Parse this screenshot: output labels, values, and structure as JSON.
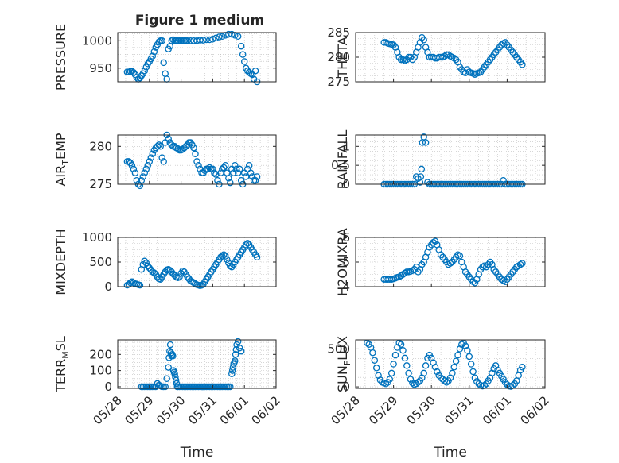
{
  "figure": {
    "title": "Figure 1 medium"
  },
  "colors": {
    "marker": "#0072bd",
    "axis": "#262626",
    "grid": "#bdbdbd",
    "background": "#ffffff"
  },
  "chart_data": [
    {
      "type": "scatter",
      "ylabel": "PRESSURE",
      "ylim": [
        925,
        1015
      ],
      "yticks": [
        950,
        1000
      ],
      "xlim": [
        0,
        5
      ],
      "xticks": [],
      "xticklabels": [],
      "xlabel": "",
      "grid": true,
      "marker": "open-circle",
      "x": [
        0.3,
        0.35,
        0.4,
        0.45,
        0.5,
        0.55,
        0.6,
        0.65,
        0.7,
        0.75,
        0.8,
        0.85,
        0.9,
        0.95,
        1.0,
        1.05,
        1.1,
        1.15,
        1.2,
        1.25,
        1.3,
        1.35,
        1.4,
        1.45,
        1.5,
        1.55,
        1.6,
        1.65,
        1.7,
        1.75,
        1.8,
        1.85,
        1.9,
        1.95,
        2.0,
        2.05,
        2.1,
        2.15,
        2.2,
        2.3,
        2.4,
        2.5,
        2.6,
        2.7,
        2.8,
        2.9,
        3.0,
        3.1,
        3.2,
        3.3,
        3.4,
        3.5,
        3.6,
        3.7,
        3.8,
        3.9,
        3.95,
        4.0,
        4.05,
        4.1,
        4.15,
        4.2,
        4.25,
        4.3,
        4.35,
        4.4
      ],
      "y": [
        943,
        943,
        944,
        944,
        942,
        938,
        933,
        930,
        932,
        936,
        940,
        945,
        952,
        958,
        962,
        967,
        972,
        980,
        988,
        993,
        998,
        1000,
        1000,
        960,
        940,
        930,
        985,
        990,
        1000,
        1002,
        1000,
        1000,
        1000,
        1000,
        1000,
        1000,
        1000,
        1000,
        1000,
        1000,
        1000,
        1000,
        1001,
        1001,
        1002,
        1002,
        1003,
        1005,
        1007,
        1008,
        1010,
        1012,
        1012,
        1010,
        1008,
        990,
        975,
        962,
        950,
        945,
        942,
        940,
        938,
        930,
        945,
        925
      ]
    },
    {
      "type": "scatter",
      "ylabel": "THETA",
      "ylim": [
        275,
        285
      ],
      "yticks": [
        275,
        280,
        285
      ],
      "xlim": [
        0,
        5
      ],
      "xticks": [],
      "xticklabels": [],
      "xlabel": "",
      "grid": true,
      "marker": "open-circle",
      "x": [
        0.75,
        0.8,
        0.85,
        0.9,
        0.95,
        1.0,
        1.05,
        1.1,
        1.15,
        1.2,
        1.25,
        1.3,
        1.35,
        1.4,
        1.45,
        1.5,
        1.55,
        1.6,
        1.65,
        1.7,
        1.75,
        1.8,
        1.85,
        1.9,
        1.95,
        2.0,
        2.05,
        2.1,
        2.15,
        2.2,
        2.25,
        2.3,
        2.35,
        2.4,
        2.45,
        2.5,
        2.55,
        2.6,
        2.65,
        2.7,
        2.75,
        2.8,
        2.85,
        2.9,
        2.95,
        3.0,
        3.05,
        3.1,
        3.15,
        3.2,
        3.25,
        3.3,
        3.35,
        3.4,
        3.45,
        3.5,
        3.55,
        3.6,
        3.65,
        3.7,
        3.75,
        3.8,
        3.85,
        3.9,
        3.95,
        4.0,
        4.05,
        4.1,
        4.15,
        4.2,
        4.25,
        4.3,
        4.35,
        4.4
      ],
      "y": [
        283,
        283,
        282.8,
        282.7,
        282.6,
        282.5,
        282,
        281,
        280,
        279.5,
        279.5,
        279.3,
        279.5,
        280,
        280,
        279.5,
        280,
        281,
        282,
        283,
        284,
        283.5,
        282,
        281,
        280,
        280,
        280,
        279.8,
        279.8,
        280,
        280,
        280,
        280.2,
        280.5,
        280.5,
        280.2,
        280,
        279.8,
        279.5,
        279,
        278,
        277.5,
        277,
        276.8,
        277.5,
        277,
        276.8,
        276.7,
        276.5,
        276.7,
        276.8,
        277,
        277.5,
        278,
        278.5,
        279,
        279.5,
        280,
        280.5,
        281,
        281.5,
        282,
        282.5,
        282.8,
        283,
        282.5,
        282,
        281.5,
        281,
        280.5,
        280,
        279.5,
        279,
        278.5
      ]
    },
    {
      "type": "scatter",
      "ylabel": "AIR_TEMP",
      "ylim": [
        275,
        281.5
      ],
      "yticks": [
        275,
        280
      ],
      "xlim": [
        0,
        5
      ],
      "xticks": [],
      "xticklabels": [],
      "xlabel": "",
      "grid": true,
      "marker": "open-circle",
      "x": [
        0.3,
        0.35,
        0.4,
        0.45,
        0.5,
        0.55,
        0.6,
        0.65,
        0.7,
        0.75,
        0.8,
        0.85,
        0.9,
        0.95,
        1.0,
        1.05,
        1.1,
        1.15,
        1.2,
        1.25,
        1.3,
        1.35,
        1.4,
        1.45,
        1.5,
        1.55,
        1.6,
        1.65,
        1.7,
        1.75,
        1.8,
        1.85,
        1.9,
        1.95,
        2.0,
        2.05,
        2.1,
        2.15,
        2.2,
        2.25,
        2.3,
        2.35,
        2.4,
        2.45,
        2.5,
        2.55,
        2.6,
        2.65,
        2.7,
        2.75,
        2.8,
        2.85,
        2.9,
        2.95,
        3.0,
        3.05,
        3.1,
        3.15,
        3.2,
        3.25,
        3.3,
        3.35,
        3.4,
        3.45,
        3.5,
        3.55,
        3.6,
        3.65,
        3.7,
        3.75,
        3.8,
        3.85,
        3.9,
        3.95,
        4.0,
        4.05,
        4.1,
        4.15,
        4.2,
        4.25,
        4.3,
        4.35,
        4.4
      ],
      "y": [
        278,
        278,
        277.8,
        277.5,
        277,
        276.5,
        275.5,
        275,
        274.8,
        275.5,
        276,
        276.5,
        277,
        277.5,
        278,
        278.5,
        279,
        279.5,
        279.8,
        280,
        280.2,
        280,
        278.5,
        278,
        280.5,
        281.5,
        281,
        280.5,
        280.2,
        280,
        280,
        279.8,
        279.7,
        279.5,
        279.5,
        279.6,
        279.8,
        280,
        280.2,
        280.5,
        280.5,
        280.2,
        279.8,
        279,
        278,
        277.5,
        277,
        276.5,
        276.5,
        276.8,
        277,
        277,
        277.2,
        277,
        277,
        276.5,
        276.3,
        275.5,
        275,
        276.5,
        277,
        277.2,
        277.5,
        276.5,
        275.8,
        275.2,
        277,
        276.5,
        277.5,
        277,
        276.5,
        277,
        275.5,
        275,
        276.5,
        276,
        277,
        277.5,
        276.5,
        276,
        275.5,
        275.5,
        276
      ]
    },
    {
      "type": "scatter",
      "ylabel": "RAINFALL",
      "ylim": [
        0,
        1.3
      ],
      "yticks": [
        0,
        0.5,
        1
      ],
      "xlim": [
        0,
        5
      ],
      "xticks": [],
      "xticklabels": [],
      "xlabel": "",
      "grid": true,
      "marker": "open-circle",
      "x": [
        0.75,
        0.8,
        0.85,
        0.9,
        0.95,
        1.0,
        1.05,
        1.1,
        1.15,
        1.2,
        1.25,
        1.3,
        1.35,
        1.4,
        1.45,
        1.5,
        1.55,
        1.6,
        1.65,
        1.7,
        1.72,
        1.74,
        1.76,
        1.8,
        1.85,
        1.9,
        1.95,
        2.0,
        2.05,
        2.1,
        2.15,
        2.2,
        2.25,
        2.3,
        2.35,
        2.4,
        2.45,
        2.5,
        2.55,
        2.6,
        2.65,
        2.7,
        2.75,
        2.8,
        2.85,
        2.9,
        2.95,
        3.0,
        3.05,
        3.1,
        3.15,
        3.2,
        3.25,
        3.3,
        3.35,
        3.4,
        3.45,
        3.5,
        3.55,
        3.6,
        3.65,
        3.7,
        3.75,
        3.8,
        3.85,
        3.9,
        3.95,
        4.0,
        4.05,
        4.1,
        4.15,
        4.2,
        4.25,
        4.3,
        4.35,
        4.4
      ],
      "y": [
        0,
        0,
        0,
        0,
        0,
        0,
        0,
        0,
        0,
        0,
        0,
        0,
        0,
        0,
        0,
        0,
        0,
        0.2,
        0.15,
        0.05,
        0.2,
        0.4,
        1.1,
        1.25,
        1.1,
        0.05,
        0,
        0,
        0,
        0,
        0,
        0,
        0,
        0,
        0,
        0,
        0,
        0,
        0,
        0,
        0,
        0,
        0,
        0,
        0,
        0,
        0,
        0,
        0,
        0,
        0,
        0,
        0,
        0,
        0,
        0,
        0,
        0,
        0,
        0,
        0,
        0,
        0,
        0,
        0,
        0.1,
        0,
        0,
        0,
        0,
        0,
        0,
        0,
        0,
        0,
        0
      ]
    },
    {
      "type": "scatter",
      "ylabel": "MIXDEPTH",
      "ylim": [
        0,
        1000
      ],
      "yticks": [
        0,
        500,
        1000
      ],
      "xlim": [
        0,
        5
      ],
      "xticks": [],
      "xticklabels": [],
      "xlabel": "",
      "grid": true,
      "marker": "open-circle",
      "x": [
        0.3,
        0.35,
        0.4,
        0.45,
        0.5,
        0.55,
        0.6,
        0.65,
        0.7,
        0.75,
        0.8,
        0.85,
        0.9,
        0.95,
        1.0,
        1.05,
        1.1,
        1.15,
        1.2,
        1.25,
        1.3,
        1.35,
        1.4,
        1.45,
        1.5,
        1.55,
        1.6,
        1.65,
        1.7,
        1.75,
        1.8,
        1.85,
        1.9,
        1.95,
        2.0,
        2.05,
        2.1,
        2.15,
        2.2,
        2.25,
        2.3,
        2.35,
        2.4,
        2.45,
        2.5,
        2.55,
        2.6,
        2.65,
        2.7,
        2.75,
        2.8,
        2.85,
        2.9,
        2.95,
        3.0,
        3.05,
        3.1,
        3.15,
        3.2,
        3.25,
        3.3,
        3.35,
        3.4,
        3.45,
        3.5,
        3.55,
        3.6,
        3.65,
        3.7,
        3.75,
        3.8,
        3.85,
        3.9,
        3.95,
        4.0,
        4.05,
        4.1,
        4.15,
        4.2,
        4.25,
        4.3,
        4.35,
        4.4
      ],
      "y": [
        30,
        50,
        80,
        100,
        80,
        60,
        50,
        40,
        30,
        350,
        450,
        520,
        480,
        420,
        380,
        340,
        300,
        280,
        250,
        200,
        160,
        150,
        200,
        250,
        300,
        340,
        350,
        330,
        300,
        260,
        230,
        200,
        180,
        200,
        270,
        320,
        300,
        250,
        200,
        160,
        120,
        100,
        80,
        60,
        40,
        30,
        20,
        30,
        50,
        100,
        150,
        200,
        250,
        300,
        350,
        400,
        450,
        500,
        550,
        600,
        620,
        650,
        620,
        550,
        480,
        420,
        400,
        450,
        500,
        550,
        600,
        650,
        700,
        750,
        800,
        850,
        880,
        850,
        800,
        750,
        700,
        650,
        600
      ]
    },
    {
      "type": "scatter",
      "ylabel": "H2OMIXRA",
      "ylim": [
        4,
        6
      ],
      "yticks": [
        4,
        5,
        6
      ],
      "xlim": [
        0,
        5
      ],
      "xticks": [],
      "xticklabels": [],
      "xlabel": "",
      "grid": true,
      "marker": "open-circle",
      "x": [
        0.75,
        0.8,
        0.85,
        0.9,
        0.95,
        1.0,
        1.05,
        1.1,
        1.15,
        1.2,
        1.25,
        1.3,
        1.35,
        1.4,
        1.45,
        1.5,
        1.55,
        1.6,
        1.65,
        1.7,
        1.75,
        1.8,
        1.85,
        1.9,
        1.95,
        2.0,
        2.05,
        2.1,
        2.15,
        2.2,
        2.25,
        2.3,
        2.35,
        2.4,
        2.45,
        2.5,
        2.55,
        2.6,
        2.65,
        2.7,
        2.75,
        2.8,
        2.85,
        2.9,
        2.95,
        3.0,
        3.05,
        3.1,
        3.15,
        3.2,
        3.25,
        3.3,
        3.35,
        3.4,
        3.45,
        3.5,
        3.55,
        3.6,
        3.65,
        3.7,
        3.75,
        3.8,
        3.85,
        3.9,
        3.95,
        4.0,
        4.05,
        4.1,
        4.15,
        4.2,
        4.25,
        4.3,
        4.35,
        4.4
      ],
      "y": [
        4.3,
        4.3,
        4.3,
        4.3,
        4.3,
        4.32,
        4.35,
        4.38,
        4.4,
        4.45,
        4.5,
        4.55,
        4.6,
        4.6,
        4.62,
        4.65,
        4.7,
        4.8,
        4.6,
        4.7,
        4.9,
        5.0,
        5.2,
        5.4,
        5.6,
        5.7,
        5.8,
        5.85,
        5.7,
        5.5,
        5.3,
        5.2,
        5.1,
        5.0,
        4.9,
        4.95,
        5.0,
        5.1,
        5.2,
        5.3,
        5.25,
        5.0,
        4.8,
        4.6,
        4.5,
        4.4,
        4.3,
        4.2,
        4.15,
        4.3,
        4.5,
        4.7,
        4.8,
        4.85,
        4.8,
        4.9,
        5.0,
        4.9,
        4.7,
        4.6,
        4.5,
        4.4,
        4.3,
        4.25,
        4.2,
        4.3,
        4.4,
        4.5,
        4.6,
        4.7,
        4.8,
        4.85,
        4.9,
        4.95
      ]
    },
    {
      "type": "scatter",
      "ylabel": "TERR_MSL",
      "ylim": [
        -10,
        290
      ],
      "yticks": [
        0,
        100,
        200
      ],
      "xlim": [
        0,
        5
      ],
      "xticks": [
        0,
        1,
        2,
        3,
        4,
        5
      ],
      "xticklabels": [
        "05/28",
        "05/29",
        "05/30",
        "05/31",
        "06/01",
        "06/02"
      ],
      "xlabel": "Time",
      "grid": true,
      "marker": "open-circle",
      "x": [
        0.75,
        0.8,
        0.85,
        0.9,
        0.95,
        1.0,
        1.05,
        1.1,
        1.15,
        1.2,
        1.25,
        1.3,
        1.35,
        1.4,
        1.45,
        1.5,
        1.55,
        1.6,
        1.62,
        1.64,
        1.66,
        1.68,
        1.7,
        1.72,
        1.74,
        1.76,
        1.78,
        1.8,
        1.82,
        1.84,
        1.86,
        1.88,
        1.9,
        1.95,
        2.0,
        2.05,
        2.1,
        2.15,
        2.2,
        2.25,
        2.3,
        2.35,
        2.4,
        2.45,
        2.5,
        2.55,
        2.6,
        2.65,
        2.7,
        2.75,
        2.8,
        2.85,
        2.9,
        2.95,
        3.0,
        3.05,
        3.1,
        3.15,
        3.2,
        3.25,
        3.3,
        3.35,
        3.4,
        3.45,
        3.5,
        3.55,
        3.6,
        3.62,
        3.64,
        3.66,
        3.68,
        3.7,
        3.72,
        3.74,
        3.76,
        3.8,
        3.85,
        3.9
      ],
      "y": [
        0,
        0,
        0,
        0,
        0,
        0,
        0,
        0,
        0,
        0,
        20,
        10,
        5,
        0,
        0,
        0,
        50,
        120,
        180,
        220,
        260,
        210,
        190,
        200,
        190,
        100,
        90,
        80,
        60,
        40,
        20,
        0,
        0,
        0,
        0,
        0,
        0,
        0,
        0,
        0,
        0,
        0,
        0,
        0,
        0,
        0,
        0,
        0,
        0,
        0,
        0,
        0,
        0,
        0,
        0,
        0,
        0,
        0,
        0,
        0,
        0,
        0,
        0,
        0,
        0,
        0,
        80,
        100,
        120,
        140,
        150,
        160,
        200,
        230,
        260,
        280,
        240,
        220
      ]
    },
    {
      "type": "scatter",
      "ylabel": "SUN_FLUX",
      "ylim": [
        -20,
        620
      ],
      "yticks": [
        0,
        500
      ],
      "xlim": [
        0,
        5
      ],
      "xticks": [
        0,
        1,
        2,
        3,
        4,
        5
      ],
      "xticklabels": [
        "05/28",
        "05/29",
        "05/30",
        "05/31",
        "06/01",
        "06/02"
      ],
      "xlabel": "Time",
      "grid": true,
      "marker": "open-circle",
      "x": [
        0.3,
        0.35,
        0.4,
        0.45,
        0.5,
        0.55,
        0.6,
        0.65,
        0.7,
        0.75,
        0.8,
        0.85,
        0.9,
        0.95,
        1.0,
        1.05,
        1.1,
        1.15,
        1.2,
        1.25,
        1.3,
        1.35,
        1.4,
        1.45,
        1.5,
        1.55,
        1.6,
        1.65,
        1.7,
        1.75,
        1.8,
        1.85,
        1.9,
        1.95,
        2.0,
        2.05,
        2.1,
        2.15,
        2.2,
        2.25,
        2.3,
        2.35,
        2.4,
        2.45,
        2.5,
        2.55,
        2.6,
        2.65,
        2.7,
        2.75,
        2.8,
        2.85,
        2.9,
        2.95,
        3.0,
        3.05,
        3.1,
        3.15,
        3.2,
        3.25,
        3.3,
        3.35,
        3.4,
        3.45,
        3.5,
        3.55,
        3.6,
        3.65,
        3.7,
        3.75,
        3.8,
        3.85,
        3.9,
        3.95,
        4.0,
        4.05,
        4.1,
        4.15,
        4.2,
        4.25,
        4.3,
        4.35,
        4.4
      ],
      "y": [
        580,
        560,
        520,
        450,
        350,
        250,
        150,
        90,
        60,
        50,
        40,
        60,
        100,
        180,
        300,
        420,
        520,
        580,
        560,
        480,
        380,
        280,
        180,
        100,
        50,
        30,
        40,
        60,
        80,
        120,
        180,
        280,
        380,
        420,
        380,
        320,
        260,
        200,
        150,
        120,
        100,
        80,
        60,
        80,
        120,
        180,
        260,
        340,
        420,
        500,
        560,
        580,
        540,
        480,
        400,
        300,
        200,
        120,
        70,
        40,
        20,
        10,
        20,
        40,
        80,
        120,
        180,
        240,
        280,
        220,
        180,
        140,
        100,
        60,
        30,
        10,
        5,
        20,
        40,
        80,
        150,
        220,
        260
      ]
    }
  ]
}
